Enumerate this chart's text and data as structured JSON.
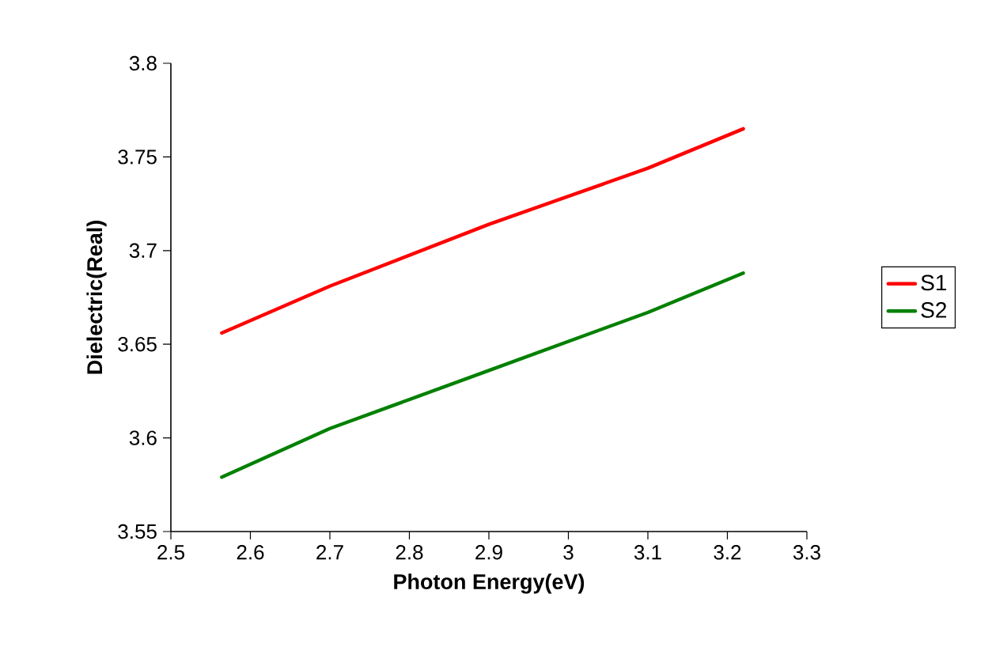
{
  "chart_data": {
    "type": "line",
    "xlabel": "Photon Energy(eV)",
    "ylabel": "Dielectric(Real)",
    "xlim": [
      2.5,
      3.3
    ],
    "xticks": [
      2.5,
      2.6,
      2.7,
      2.8,
      2.9,
      3,
      3.1,
      3.2,
      3.3
    ],
    "ylim": [
      3.55,
      3.8
    ],
    "yticks": [
      3.55,
      3.6,
      3.65,
      3.7,
      3.75,
      3.8
    ],
    "legend": "right",
    "marker": "none",
    "line_style": "solid",
    "series": [
      {
        "name": "S1",
        "color": "#ff0000",
        "x": [
          2.564,
          2.7,
          2.9,
          3.1,
          3.22
        ],
        "values": [
          3.656,
          3.681,
          3.714,
          3.744,
          3.765
        ]
      },
      {
        "name": "S2",
        "color": "#008000",
        "x": [
          2.564,
          2.7,
          2.9,
          3.1,
          3.22
        ],
        "values": [
          3.579,
          3.605,
          3.636,
          3.667,
          3.688
        ]
      }
    ]
  }
}
